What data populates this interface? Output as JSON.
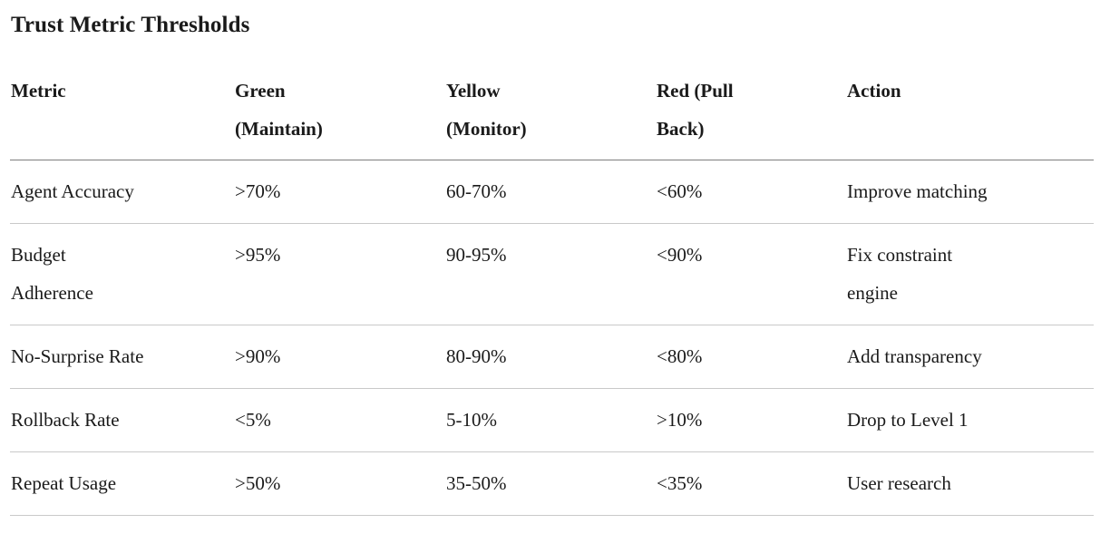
{
  "page": {
    "title": "Trust Metric Thresholds"
  },
  "table": {
    "columns": [
      "Metric",
      "Green (Maintain)",
      "Yellow (Monitor)",
      "Red (Pull Back)",
      "Action"
    ],
    "rows": [
      [
        "Agent Accuracy",
        ">70%",
        "60-70%",
        "<60%",
        "Improve matching"
      ],
      [
        "Budget Adherence",
        ">95%",
        "90-95%",
        "<90%",
        "Fix constraint engine"
      ],
      [
        "No-Surprise Rate",
        ">90%",
        "80-90%",
        "<80%",
        "Add transparency"
      ],
      [
        "Rollback Rate",
        "<5%",
        "5-10%",
        ">10%",
        "Drop to Level 1"
      ],
      [
        "Repeat Usage",
        ">50%",
        "35-50%",
        "<35%",
        "User research"
      ]
    ]
  },
  "colors": {
    "text": "#1a1a1a",
    "header_rule": "#7d7d7d",
    "row_rule": "#c9c9c9",
    "background": "#ffffff"
  }
}
